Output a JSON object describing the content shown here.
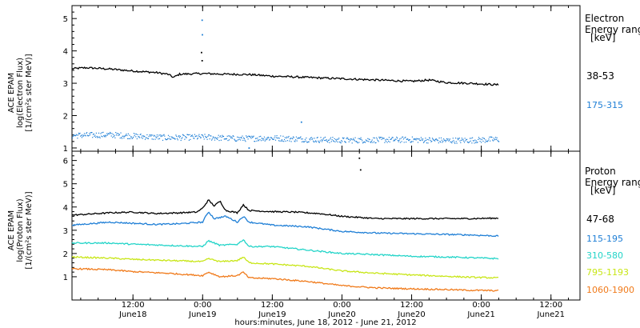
{
  "chart_data": {
    "type": "scatter",
    "xlabel": "hours:minutes, June 18, 2012 - June 21, 2012",
    "x_ticks": [
      {
        "t": 12,
        "time": "12:00",
        "date": "June18"
      },
      {
        "t": 24,
        "time": "0:00",
        "date": "June19"
      },
      {
        "t": 36,
        "time": "12:00",
        "date": "June19"
      },
      {
        "t": 48,
        "time": "0:00",
        "date": "June20"
      },
      {
        "t": 60,
        "time": "12:00",
        "date": "June20"
      },
      {
        "t": 72,
        "time": "0:00",
        "date": "June21"
      },
      {
        "t": 84,
        "time": "12:00",
        "date": "June21"
      }
    ],
    "xlim_hours": [
      1.5,
      89
    ],
    "data_end_hours": 75,
    "panels": [
      {
        "id": "electron",
        "ylabel_lines": [
          "ACE EPAM",
          "log(Electron Flux)",
          "[1/(cm²s ster MeV)]"
        ],
        "ylim": [
          0.9,
          5.4
        ],
        "yticks": [
          1,
          2,
          3,
          4,
          5
        ],
        "legend_title": [
          "Electron",
          "Energy range",
          "[keV]"
        ],
        "series": [
          {
            "name": "38-53",
            "color": "#000000",
            "style": "line",
            "points": [
              [
                1.5,
                3.45
              ],
              [
                4,
                3.48
              ],
              [
                8,
                3.44
              ],
              [
                12,
                3.38
              ],
              [
                16,
                3.33
              ],
              [
                18,
                3.28
              ],
              [
                19,
                3.18
              ],
              [
                20,
                3.28
              ],
              [
                24,
                3.3
              ],
              [
                28,
                3.28
              ],
              [
                32,
                3.27
              ],
              [
                36,
                3.22
              ],
              [
                42,
                3.18
              ],
              [
                48,
                3.14
              ],
              [
                54,
                3.1
              ],
              [
                60,
                3.06
              ],
              [
                63,
                3.1
              ],
              [
                66,
                3.02
              ],
              [
                70,
                3.0
              ],
              [
                75,
                2.95
              ]
            ],
            "outliers": [
              [
                23.8,
                3.95
              ],
              [
                23.9,
                3.7
              ]
            ]
          },
          {
            "name": "175-315",
            "color": "#1f7fd6",
            "style": "dots",
            "points": [
              [
                1.5,
                1.4
              ],
              [
                8,
                1.42
              ],
              [
                12,
                1.38
              ],
              [
                18,
                1.33
              ],
              [
                24,
                1.35
              ],
              [
                30,
                1.3
              ],
              [
                36,
                1.32
              ],
              [
                42,
                1.28
              ],
              [
                48,
                1.25
              ],
              [
                54,
                1.26
              ],
              [
                60,
                1.27
              ],
              [
                66,
                1.24
              ],
              [
                70,
                1.25
              ],
              [
                75,
                1.28
              ]
            ],
            "outliers": [
              [
                23.9,
                4.95
              ],
              [
                23.95,
                4.5
              ],
              [
                41,
                1.8
              ],
              [
                32,
                1.0
              ]
            ]
          }
        ]
      },
      {
        "id": "proton",
        "ylabel_lines": [
          "ACE EPAM",
          "log(Proton Flux)",
          "[1/(cm²s ster MeV)]"
        ],
        "ylim": [
          0,
          6.4
        ],
        "yticks": [
          1,
          2,
          3,
          4,
          5,
          6
        ],
        "legend_title": [
          "Proton",
          "Energy range",
          "[keV]"
        ],
        "series": [
          {
            "name": "47-68",
            "color": "#000000",
            "style": "line",
            "points": [
              [
                1.5,
                3.65
              ],
              [
                8,
                3.75
              ],
              [
                12,
                3.78
              ],
              [
                16,
                3.72
              ],
              [
                20,
                3.75
              ],
              [
                23,
                3.78
              ],
              [
                24,
                3.95
              ],
              [
                25,
                4.3
              ],
              [
                26,
                4.05
              ],
              [
                27,
                4.25
              ],
              [
                28,
                3.85
              ],
              [
                30,
                3.75
              ],
              [
                31,
                4.1
              ],
              [
                32,
                3.85
              ],
              [
                36,
                3.8
              ],
              [
                40,
                3.78
              ],
              [
                44,
                3.72
              ],
              [
                48,
                3.6
              ],
              [
                54,
                3.5
              ],
              [
                60,
                3.5
              ],
              [
                66,
                3.5
              ],
              [
                70,
                3.5
              ],
              [
                75,
                3.52
              ]
            ],
            "outliers": [
              [
                51,
                6.1
              ],
              [
                51.2,
                5.6
              ]
            ]
          },
          {
            "name": "115-195",
            "color": "#1f7fd6",
            "style": "line",
            "points": [
              [
                1.5,
                3.22
              ],
              [
                8,
                3.35
              ],
              [
                12,
                3.3
              ],
              [
                16,
                3.25
              ],
              [
                20,
                3.28
              ],
              [
                24,
                3.35
              ],
              [
                25,
                3.8
              ],
              [
                26,
                3.5
              ],
              [
                28,
                3.6
              ],
              [
                30,
                3.35
              ],
              [
                31,
                3.6
              ],
              [
                32,
                3.35
              ],
              [
                36,
                3.22
              ],
              [
                42,
                3.15
              ],
              [
                48,
                2.95
              ],
              [
                54,
                2.88
              ],
              [
                60,
                2.85
              ],
              [
                66,
                2.82
              ],
              [
                70,
                2.8
              ],
              [
                75,
                2.75
              ]
            ]
          },
          {
            "name": "310-580",
            "color": "#22d4c8",
            "style": "line",
            "points": [
              [
                1.5,
                2.45
              ],
              [
                8,
                2.45
              ],
              [
                12,
                2.4
              ],
              [
                18,
                2.35
              ],
              [
                24,
                2.3
              ],
              [
                25,
                2.55
              ],
              [
                27,
                2.35
              ],
              [
                30,
                2.4
              ],
              [
                31,
                2.6
              ],
              [
                32,
                2.3
              ],
              [
                36,
                2.3
              ],
              [
                42,
                2.15
              ],
              [
                48,
                2.0
              ],
              [
                54,
                1.95
              ],
              [
                60,
                1.88
              ],
              [
                66,
                1.85
              ],
              [
                70,
                1.82
              ],
              [
                75,
                1.78
              ]
            ]
          },
          {
            "name": "795-1193",
            "color": "#c8e617",
            "style": "line",
            "points": [
              [
                1.5,
                1.85
              ],
              [
                8,
                1.8
              ],
              [
                12,
                1.75
              ],
              [
                18,
                1.7
              ],
              [
                24,
                1.65
              ],
              [
                25,
                1.78
              ],
              [
                27,
                1.65
              ],
              [
                30,
                1.7
              ],
              [
                31,
                1.85
              ],
              [
                32,
                1.6
              ],
              [
                36,
                1.55
              ],
              [
                42,
                1.45
              ],
              [
                48,
                1.25
              ],
              [
                54,
                1.15
              ],
              [
                60,
                1.08
              ],
              [
                66,
                1.02
              ],
              [
                70,
                0.98
              ],
              [
                75,
                0.95
              ]
            ]
          },
          {
            "name": "1060-1900",
            "color": "#f07a1a",
            "style": "line",
            "points": [
              [
                1.5,
                1.35
              ],
              [
                8,
                1.3
              ],
              [
                12,
                1.22
              ],
              [
                18,
                1.15
              ],
              [
                24,
                1.05
              ],
              [
                25,
                1.2
              ],
              [
                27,
                1.0
              ],
              [
                30,
                1.05
              ],
              [
                31,
                1.2
              ],
              [
                32,
                0.95
              ],
              [
                36,
                0.92
              ],
              [
                42,
                0.8
              ],
              [
                48,
                0.62
              ],
              [
                54,
                0.52
              ],
              [
                60,
                0.48
              ],
              [
                66,
                0.45
              ],
              [
                70,
                0.42
              ],
              [
                75,
                0.4
              ]
            ]
          }
        ]
      }
    ]
  }
}
